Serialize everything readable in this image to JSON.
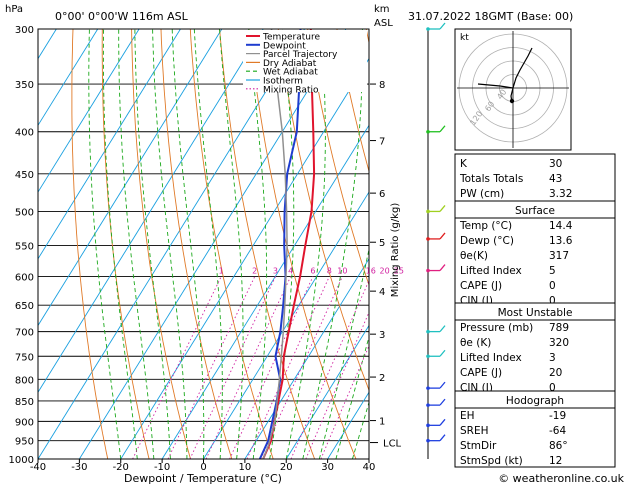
{
  "header": {
    "pressure_unit": "hPa",
    "location": "0°00' 0°00'W 116m ASL",
    "height_unit_km": "km",
    "height_unit_asl": "ASL",
    "datetime": "31.07.2022 18GMT (Base: 00)"
  },
  "chart_data": {
    "type": "line",
    "xlabel": "Dewpoint / Temperature (°C)",
    "ylabel_right": "Mixing Ratio (g/kg)",
    "x_ticks": [
      -40,
      -30,
      -20,
      -10,
      0,
      10,
      20,
      30,
      40
    ],
    "xlim": [
      -40,
      40
    ],
    "pressure_levels": [
      300,
      350,
      400,
      450,
      500,
      550,
      600,
      650,
      700,
      750,
      800,
      850,
      900,
      950,
      1000
    ],
    "ylim_hpa": [
      1000,
      300
    ],
    "km_ticks": [
      {
        "km": "8",
        "p": 350
      },
      {
        "km": "7",
        "p": 410
      },
      {
        "km": "6",
        "p": 475
      },
      {
        "km": "5",
        "p": 545
      },
      {
        "km": "4",
        "p": 625
      },
      {
        "km": "3",
        "p": 705
      },
      {
        "km": "2",
        "p": 795
      },
      {
        "km": "1",
        "p": 898
      }
    ],
    "lcl": {
      "label": "LCL",
      "p": 955
    },
    "mixing_ratio_labels": [
      "1",
      "2",
      "3",
      "4",
      "6",
      "8",
      "10",
      "16",
      "20",
      "25"
    ],
    "mixing_ratios": [
      1,
      2,
      3,
      4,
      6,
      8,
      10,
      16,
      20,
      25
    ],
    "legend": [
      "Temperature",
      "Dewpoint",
      "Parcel Trajectory",
      "Dry Adiabat",
      "Wet Adiabat",
      "Isotherm",
      "Mixing Ratio"
    ],
    "colors": {
      "temperature": "#e0142d",
      "dewpoint": "#1e3ccf",
      "parcel": "#909090",
      "dry_adiabat": "#e07a28",
      "wet_adiabat": "#1aa81a",
      "isotherm": "#1aa0e0",
      "mixing_ratio": "#d020a0"
    },
    "series": [
      {
        "name": "Temperature",
        "points": [
          [
            14.4,
            1000
          ],
          [
            13.6,
            950
          ],
          [
            11.5,
            900
          ],
          [
            9.4,
            850
          ],
          [
            7.2,
            800
          ],
          [
            4.0,
            750
          ],
          [
            1.5,
            700
          ],
          [
            -1.2,
            650
          ],
          [
            -4.0,
            600
          ],
          [
            -7.4,
            550
          ],
          [
            -11.0,
            500
          ],
          [
            -16.0,
            450
          ],
          [
            -22.5,
            400
          ],
          [
            -30.0,
            350
          ],
          [
            -38.5,
            300
          ]
        ]
      },
      {
        "name": "Dewpoint",
        "points": [
          [
            13.6,
            1000
          ],
          [
            12.9,
            950
          ],
          [
            11.0,
            900
          ],
          [
            9.0,
            850
          ],
          [
            6.6,
            800
          ],
          [
            2.0,
            750
          ],
          [
            -0.5,
            700
          ],
          [
            -3.8,
            650
          ],
          [
            -7.5,
            600
          ],
          [
            -12.5,
            550
          ],
          [
            -17.5,
            500
          ],
          [
            -22.5,
            450
          ],
          [
            -26.5,
            400
          ],
          [
            -33.0,
            350
          ],
          [
            -41.0,
            300
          ]
        ]
      },
      {
        "name": "Parcel Trajectory",
        "points": [
          [
            14.4,
            1000
          ],
          [
            13.6,
            960
          ],
          [
            11.6,
            900
          ],
          [
            9.1,
            850
          ],
          [
            6.4,
            800
          ],
          [
            3.4,
            750
          ],
          [
            0.2,
            700
          ],
          [
            -3.4,
            650
          ],
          [
            -7.4,
            600
          ],
          [
            -11.8,
            550
          ],
          [
            -17.0,
            500
          ],
          [
            -23.0,
            450
          ],
          [
            -30.0,
            400
          ],
          [
            -38.5,
            350
          ],
          [
            -48.0,
            300
          ]
        ]
      }
    ]
  },
  "hodograph": {
    "unit": "kt",
    "ring_labels": [
      "40",
      "60",
      "120"
    ]
  },
  "indices": {
    "rows": [
      {
        "label": "K",
        "value": "30"
      },
      {
        "label": "Totals Totals",
        "value": "43"
      },
      {
        "label": "PW (cm)",
        "value": "3.32"
      }
    ]
  },
  "surface": {
    "title": "Surface",
    "rows": [
      {
        "label": "Temp (°C)",
        "value": "14.4"
      },
      {
        "label": "Dewp (°C)",
        "value": "13.6"
      },
      {
        "label": "θe(K)",
        "value": "317"
      },
      {
        "label": "Lifted Index",
        "value": "5"
      },
      {
        "label": "CAPE (J)",
        "value": "0"
      },
      {
        "label": "CIN (J)",
        "value": "0"
      }
    ]
  },
  "most_unstable": {
    "title": "Most Unstable",
    "rows": [
      {
        "label": "Pressure (mb)",
        "value": "789"
      },
      {
        "label": "θe (K)",
        "value": "320"
      },
      {
        "label": "Lifted Index",
        "value": "3"
      },
      {
        "label": "CAPE (J)",
        "value": "20"
      },
      {
        "label": "CIN (J)",
        "value": "0"
      }
    ]
  },
  "hodo_table": {
    "title": "Hodograph",
    "rows": [
      {
        "label": "EH",
        "value": "-19"
      },
      {
        "label": "SREH",
        "value": "-64"
      },
      {
        "label": "StmDir",
        "value": "86°"
      },
      {
        "label": "StmSpd (kt)",
        "value": "12"
      }
    ]
  },
  "footer": {
    "copyright": "© weatheronline.co.uk"
  }
}
